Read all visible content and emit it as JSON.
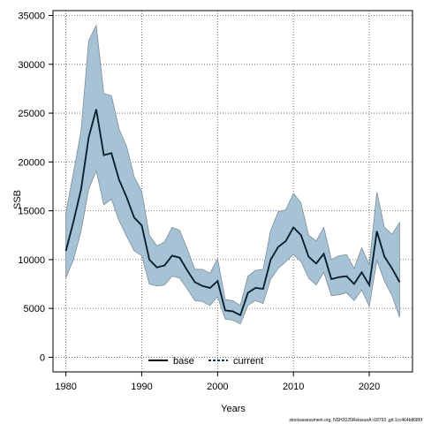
{
  "chart_data": {
    "type": "line",
    "xlabel": "Years",
    "ylabel": "SSB",
    "xlim": [
      1978.3,
      2025.7
    ],
    "ylim": [
      -1500,
      35500
    ],
    "xticks": [
      1980,
      1990,
      2000,
      2010,
      2020
    ],
    "yticks": [
      0,
      5000,
      10000,
      15000,
      20000,
      25000,
      30000,
      35000
    ],
    "grid": true,
    "legend_position": "bottom-center",
    "colors": {
      "band": "#a5c3d5",
      "band_edge": "#7f8c99",
      "current": "#0a2e45",
      "base": "#000000"
    },
    "x": [
      1980,
      1981,
      1982,
      1983,
      1984,
      1985,
      1986,
      1987,
      1988,
      1989,
      1990,
      1991,
      1992,
      1993,
      1994,
      1995,
      1996,
      1997,
      1998,
      1999,
      2000,
      2001,
      2002,
      2003,
      2004,
      2005,
      2006,
      2007,
      2008,
      2009,
      2010,
      2011,
      2012,
      2013,
      2014,
      2015,
      2016,
      2017,
      2018,
      2019,
      2020,
      2021,
      2022,
      2023,
      2024
    ],
    "series": [
      {
        "name": "base",
        "style": "solid",
        "values": [
          10900,
          13900,
          17200,
          22500,
          25400,
          20700,
          20900,
          18200,
          16400,
          14300,
          13500,
          10000,
          9200,
          9400,
          10400,
          10200,
          8900,
          7700,
          7300,
          7100,
          7800,
          4800,
          4700,
          4300,
          6600,
          7100,
          7000,
          10000,
          11300,
          11900,
          13300,
          12500,
          10300,
          9600,
          10600,
          8000,
          8200,
          8300,
          7500,
          8700,
          7400,
          12900,
          10300,
          9100,
          7700
        ]
      },
      {
        "name": "current",
        "style": "dashed",
        "values": [
          10900,
          13900,
          17200,
          22500,
          25400,
          20700,
          20900,
          18200,
          16400,
          14300,
          13500,
          10000,
          9200,
          9400,
          10400,
          10200,
          8900,
          7700,
          7300,
          7100,
          7800,
          4800,
          4700,
          4300,
          6600,
          7100,
          7000,
          10000,
          11300,
          11900,
          13300,
          12500,
          10300,
          9600,
          10600,
          8000,
          8200,
          8300,
          7500,
          8700,
          7400,
          12900,
          10300,
          9100,
          7700
        ]
      }
    ],
    "band": {
      "lower": [
        8100,
        10000,
        12900,
        17200,
        19100,
        15600,
        16200,
        14000,
        12400,
        10900,
        10400,
        7500,
        7300,
        7400,
        8300,
        8100,
        7000,
        5800,
        5700,
        5300,
        6200,
        3900,
        3800,
        3400,
        5300,
        5800,
        5500,
        8000,
        9100,
        9800,
        10500,
        9800,
        8100,
        7400,
        8700,
        6300,
        6400,
        6600,
        5800,
        6900,
        5200,
        9900,
        7800,
        6300,
        4100
      ],
      "upper": [
        14800,
        18900,
        23200,
        32400,
        34000,
        27000,
        26800,
        23400,
        21600,
        18500,
        17000,
        12500,
        11400,
        11800,
        13300,
        13000,
        11100,
        9000,
        9000,
        8600,
        10100,
        5900,
        5800,
        5300,
        8300,
        8900,
        9000,
        13000,
        14900,
        15100,
        16800,
        15800,
        12500,
        11900,
        13300,
        10000,
        10400,
        10500,
        9100,
        11200,
        9500,
        16900,
        13300,
        12600,
        13800
      ]
    },
    "legend": [
      "base",
      "current"
    ]
  },
  "footer_note": "stockassessment.org, NSH2025RelaxueA r18793 ,git:1cc464b8086f"
}
